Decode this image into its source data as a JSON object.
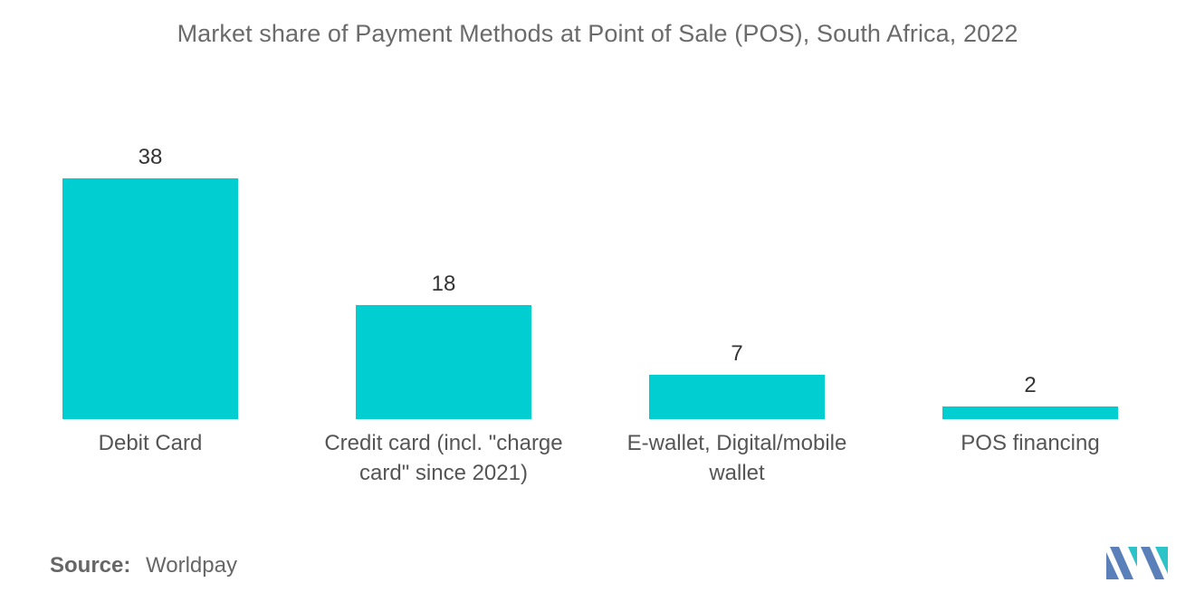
{
  "chart_data": {
    "type": "bar",
    "title": "Market share of Payment Methods at Point of Sale (POS), South Africa, 2022",
    "categories": [
      "Debit Card",
      "Credit card (incl. \"charge card\" since 2021)",
      "E-wallet, Digital/mobile wallet",
      "POS financing"
    ],
    "values": [
      38,
      18,
      7,
      2
    ],
    "data_labels": [
      "38",
      "18",
      "7",
      "2"
    ],
    "xlabel": "",
    "ylabel": "",
    "ylim": [
      0,
      38
    ],
    "grid": false,
    "legend": "none",
    "bar_color": "#00ced1"
  },
  "source": {
    "label": "Source:",
    "value": "Worldpay"
  },
  "logo": {
    "icon": "mordor-intelligence-logo-icon",
    "colors": [
      "#5b7fb8",
      "#2cc4c9"
    ]
  }
}
